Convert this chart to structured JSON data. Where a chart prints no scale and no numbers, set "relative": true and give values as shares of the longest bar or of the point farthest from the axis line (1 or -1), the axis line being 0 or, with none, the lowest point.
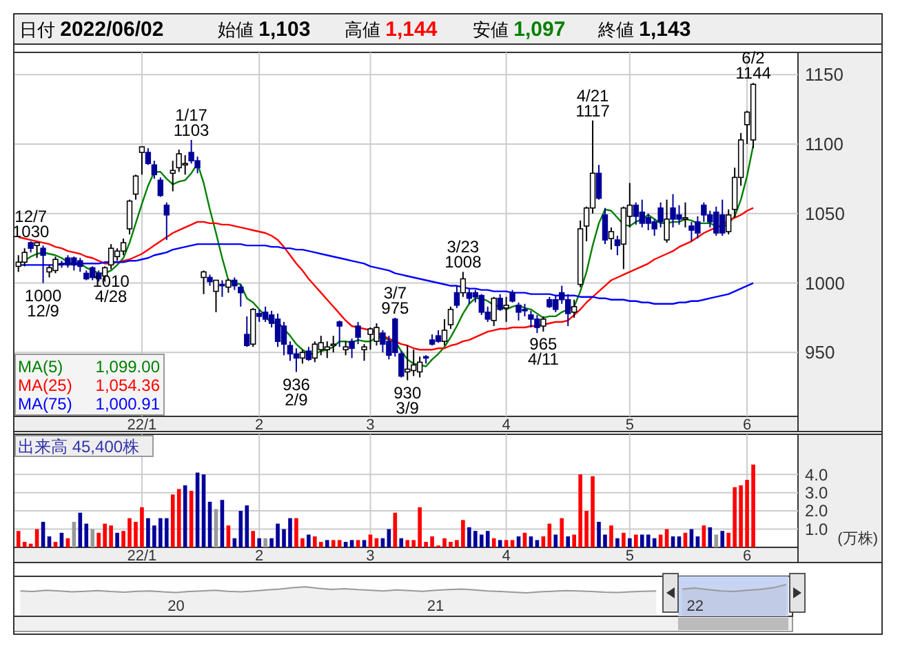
{
  "chart_data": [
    {
      "type": "candlestick",
      "grid": true,
      "ylim": [
        904,
        1166
      ],
      "yticks": [
        950,
        1000,
        1050,
        1100,
        1150
      ],
      "categories": [
        null,
        null,
        null,
        null,
        null,
        null,
        null,
        null,
        null,
        null,
        null,
        null,
        null,
        null,
        null,
        null,
        null,
        null,
        null,
        null,
        "22/1",
        null,
        null,
        null,
        null,
        null,
        null,
        null,
        null,
        null,
        null,
        null,
        null,
        null,
        null,
        null,
        null,
        null,
        null,
        "2",
        null,
        null,
        null,
        null,
        null,
        null,
        null,
        null,
        null,
        null,
        null,
        null,
        null,
        null,
        null,
        null,
        null,
        "3",
        null,
        null,
        null,
        null,
        null,
        null,
        null,
        null,
        null,
        null,
        null,
        null,
        null,
        null,
        null,
        null,
        null,
        null,
        null,
        null,
        null,
        "4",
        null,
        null,
        null,
        null,
        null,
        null,
        null,
        null,
        null,
        null,
        null,
        null,
        null,
        null,
        null,
        null,
        null,
        null,
        null,
        "5",
        null,
        null,
        null,
        null,
        null,
        null,
        null,
        null,
        null,
        null,
        null,
        null,
        null,
        null,
        null,
        null,
        null,
        null,
        "6",
        null
      ],
      "ohlc": [
        [
          1012,
          1020,
          1008,
          1015
        ],
        [
          1015,
          1025,
          1012,
          1022
        ],
        [
          1029,
          1030,
          1022,
          1025
        ],
        [
          1027,
          1029,
          1018,
          1029
        ],
        [
          1025,
          1027,
          1000,
          1020
        ],
        [
          1008,
          1013,
          1004,
          1011
        ],
        [
          1009,
          1019,
          1007,
          1017
        ],
        [
          1014,
          1016,
          1011,
          1013
        ],
        [
          1018,
          1020,
          1011,
          1013
        ],
        [
          1018,
          1019,
          1009,
          1013
        ],
        [
          1016,
          1018,
          1008,
          1012
        ],
        [
          1007,
          1009,
          1002,
          1003
        ],
        [
          1011,
          1012,
          1002,
          1004
        ],
        [
          1007,
          1009,
          1001,
          1003
        ],
        [
          1005,
          1012,
          1001,
          1011
        ],
        [
          1013,
          1028,
          1010,
          1025
        ],
        [
          1019,
          1025,
          1016,
          1023
        ],
        [
          1023,
          1032,
          1020,
          1029
        ],
        [
          1039,
          1060,
          1035,
          1059
        ],
        [
          1064,
          1078,
          1060,
          1077
        ],
        [
          1094,
          1098,
          1078,
          1098
        ],
        [
          1094,
          1097,
          1085,
          1086
        ],
        [
          1085,
          1088,
          1075,
          1078
        ],
        [
          1074,
          1076,
          1062,
          1063
        ],
        [
          1056,
          1058,
          1031,
          1049
        ],
        [
          1079,
          1088,
          1066,
          1081
        ],
        [
          1083,
          1096,
          1080,
          1093
        ],
        [
          1085,
          1092,
          1078,
          1086
        ],
        [
          1094,
          1103,
          1086,
          1088
        ],
        [
          1088,
          1091,
          1079,
          1083
        ],
        [
          1004,
          1009,
          992,
          1008
        ],
        [
          1004,
          1006,
          998,
          1001
        ],
        [
          994,
          1002,
          979,
          1002
        ],
        [
          999,
          1002,
          990,
          998
        ],
        [
          997,
          1003,
          993,
          1002
        ],
        [
          1002,
          1004,
          995,
          998
        ],
        [
          997,
          999,
          983,
          993
        ],
        [
          963,
          976,
          954,
          955
        ],
        [
          956,
          982,
          954,
          981
        ],
        [
          978,
          981,
          972,
          976
        ],
        [
          979,
          983,
          972,
          974
        ],
        [
          977,
          980,
          968,
          971
        ],
        [
          974,
          978,
          954,
          958
        ],
        [
          969,
          972,
          948,
          956
        ],
        [
          955,
          958,
          944,
          949
        ],
        [
          949,
          953,
          936,
          946
        ],
        [
          946,
          952,
          942,
          950
        ],
        [
          951,
          954,
          944,
          945
        ],
        [
          946,
          958,
          943,
          956
        ],
        [
          952,
          962,
          948,
          957
        ],
        [
          952,
          958,
          946,
          954
        ],
        [
          955,
          962,
          950,
          956
        ],
        [
          972,
          973,
          954,
          969
        ],
        [
          952,
          958,
          948,
          954
        ],
        [
          958,
          960,
          946,
          953
        ],
        [
          969,
          972,
          956,
          961
        ],
        [
          952,
          956,
          944,
          954
        ],
        [
          963,
          968,
          952,
          967
        ],
        [
          958,
          971,
          955,
          968
        ],
        [
          964,
          966,
          950,
          956
        ],
        [
          958,
          962,
          945,
          948
        ],
        [
          974,
          975,
          947,
          950
        ],
        [
          949,
          951,
          932,
          933
        ],
        [
          936,
          955,
          930,
          938
        ],
        [
          937,
          952,
          933,
          941
        ],
        [
          936,
          947,
          932,
          943
        ],
        [
          947,
          948,
          942,
          946
        ],
        [
          959,
          963,
          955,
          956
        ],
        [
          962,
          966,
          957,
          958
        ],
        [
          958,
          974,
          955,
          966
        ],
        [
          970,
          983,
          967,
          981
        ],
        [
          993,
          998,
          982,
          984
        ],
        [
          993,
          1008,
          990,
          1003
        ],
        [
          993,
          996,
          985,
          989
        ],
        [
          993,
          995,
          986,
          990
        ],
        [
          991,
          992,
          977,
          979
        ],
        [
          979,
          983,
          972,
          974
        ],
        [
          973,
          990,
          969,
          989
        ],
        [
          989,
          992,
          980,
          981
        ],
        [
          982,
          990,
          972,
          984
        ],
        [
          993,
          995,
          986,
          987
        ],
        [
          984,
          986,
          973,
          979
        ],
        [
          981,
          985,
          976,
          980
        ],
        [
          977,
          980,
          968,
          974
        ],
        [
          974,
          977,
          964,
          968
        ],
        [
          969,
          976,
          965,
          974
        ],
        [
          988,
          990,
          982,
          983
        ],
        [
          988,
          991,
          979,
          981
        ],
        [
          993,
          998,
          985,
          988
        ],
        [
          988,
          992,
          969,
          978
        ],
        [
          979,
          988,
          975,
          983
        ],
        [
          999,
          1045,
          997,
          1039
        ],
        [
          1041,
          1055,
          1030,
          1054
        ],
        [
          1054,
          1117,
          1050,
          1079
        ],
        [
          1079,
          1085,
          1060,
          1061
        ],
        [
          1049,
          1054,
          1028,
          1031
        ],
        [
          1032,
          1040,
          1024,
          1037
        ],
        [
          1031,
          1034,
          1020,
          1027
        ],
        [
          1028,
          1055,
          1010,
          1054
        ],
        [
          1048,
          1072,
          1040,
          1056
        ],
        [
          1056,
          1058,
          1042,
          1048
        ],
        [
          1051,
          1060,
          1040,
          1043
        ],
        [
          1047,
          1050,
          1038,
          1043
        ],
        [
          1044,
          1046,
          1034,
          1039
        ],
        [
          1054,
          1058,
          1040,
          1044
        ],
        [
          1031,
          1060,
          1029,
          1046
        ],
        [
          1054,
          1064,
          1040,
          1046
        ],
        [
          1049,
          1056,
          1042,
          1046
        ],
        [
          1046,
          1058,
          1040,
          1047
        ],
        [
          1041,
          1044,
          1030,
          1038
        ],
        [
          1044,
          1048,
          1032,
          1036
        ],
        [
          1056,
          1058,
          1044,
          1049
        ],
        [
          1049,
          1052,
          1040,
          1044
        ],
        [
          1051,
          1055,
          1034,
          1036
        ],
        [
          1049,
          1060,
          1034,
          1036
        ],
        [
          1037,
          1053,
          1035,
          1049
        ],
        [
          1053,
          1083,
          1047,
          1076
        ],
        [
          1076,
          1108,
          1070,
          1103
        ],
        [
          1114,
          1124,
          1100,
          1123
        ],
        [
          1103,
          1144,
          1097,
          1143
        ]
      ],
      "series": [
        {
          "name": "MA(5) 1,099.00",
          "type": "line",
          "color": "#008000",
          "values": [
            1014,
            1016,
            1019,
            1021,
            1022,
            1021,
            1020,
            1018,
            1015,
            1013,
            1014,
            1011,
            1009,
            1007,
            1007,
            1009,
            1013,
            1018,
            1029,
            1043,
            1057,
            1070,
            1080,
            1080,
            1075,
            1071,
            1073,
            1074,
            1079,
            1086,
            1072,
            1053,
            1036,
            1018,
            1002,
            1000,
            999,
            989,
            986,
            981,
            976,
            971,
            972,
            967,
            962,
            956,
            952,
            949,
            949,
            951,
            952,
            954,
            958,
            958,
            957,
            959,
            958,
            958,
            961,
            961,
            959,
            958,
            951,
            945,
            942,
            941,
            940,
            945,
            949,
            954,
            961,
            969,
            978,
            985,
            989,
            989,
            987,
            984,
            983,
            981,
            983,
            984,
            982,
            981,
            978,
            975,
            976,
            976,
            979,
            981,
            983,
            994,
            1008,
            1027,
            1043,
            1053,
            1052,
            1047,
            1042,
            1041,
            1044,
            1046,
            1049,
            1046,
            1043,
            1043,
            1044,
            1044,
            1046,
            1045,
            1043,
            1043,
            1043,
            1041,
            1040,
            1043,
            1048,
            1060,
            1077,
            1099
          ]
        },
        {
          "name": "MA(25) 1,054.36",
          "type": "line",
          "color": "#ff0000",
          "values": [
            1033,
            1032,
            1031,
            1030,
            1029,
            1028,
            1026,
            1025,
            1023,
            1022,
            1021,
            1019,
            1018,
            1016,
            1014,
            1014,
            1015,
            1016,
            1017,
            1019,
            1021,
            1024,
            1027,
            1030,
            1033,
            1036,
            1038,
            1040,
            1042,
            1044,
            1044,
            1043,
            1043,
            1042,
            1042,
            1041,
            1040,
            1039,
            1038,
            1037,
            1036,
            1034,
            1031,
            1026,
            1020,
            1014,
            1009,
            1003,
            998,
            993,
            988,
            983,
            978,
            973,
            969,
            968,
            967,
            966,
            964,
            962,
            960,
            958,
            956,
            955,
            953,
            952,
            952,
            952,
            953,
            953,
            955,
            956,
            958,
            959,
            961,
            963,
            965,
            966,
            967,
            967,
            968,
            968,
            968,
            969,
            969,
            970,
            971,
            972,
            972,
            973,
            977,
            981,
            986,
            990,
            994,
            998,
            1002,
            1004,
            1006,
            1008,
            1010,
            1012,
            1014,
            1017,
            1019,
            1021,
            1023,
            1026,
            1028,
            1030,
            1033,
            1036,
            1038,
            1040,
            1042,
            1045,
            1047,
            1049,
            1052,
            1054
          ]
        },
        {
          "name": "MA(75) 1,000.91",
          "type": "line",
          "color": "#0000ff",
          "values": [
            1013,
            1013,
            1013,
            1013,
            1013,
            1013,
            1013,
            1014,
            1014,
            1014,
            1014,
            1014,
            1014,
            1014,
            1015,
            1015,
            1015,
            1015,
            1016,
            1016,
            1017,
            1018,
            1020,
            1021,
            1022,
            1024,
            1025,
            1026,
            1027,
            1028,
            1028,
            1028,
            1028,
            1028,
            1028,
            1028,
            1028,
            1027,
            1027,
            1027,
            1027,
            1026,
            1026,
            1025,
            1025,
            1024,
            1024,
            1023,
            1022,
            1021,
            1020,
            1019,
            1018,
            1017,
            1016,
            1015,
            1014,
            1012,
            1011,
            1010,
            1009,
            1007,
            1006,
            1005,
            1004,
            1003,
            1002,
            1001,
            1000,
            999,
            998,
            998,
            997,
            996,
            996,
            995,
            995,
            994,
            994,
            994,
            993,
            993,
            993,
            992,
            992,
            992,
            992,
            991,
            991,
            991,
            991,
            990,
            990,
            990,
            989,
            989,
            988,
            988,
            988,
            987,
            987,
            986,
            986,
            985,
            985,
            985,
            985,
            986,
            986,
            987,
            987,
            988,
            989,
            990,
            991,
            992,
            994,
            996,
            998,
            1000
          ]
        }
      ],
      "annotations": [
        "日付 2022/06/02",
        "始値 1,103",
        "高値 1,144",
        "安値 1,097",
        "終値 1,143",
        {
          "text": "12/7 1030",
          "y": 1030
        },
        {
          "text": "1000 12/9",
          "y": 1000
        },
        {
          "text": "1/17 1103",
          "y": 1103
        },
        {
          "text": "936 2/9",
          "y": 936
        },
        {
          "text": "3/7 975",
          "y": 975
        },
        {
          "text": "930 3/9",
          "y": 930
        },
        {
          "text": "3/23 1008",
          "y": 1008
        },
        {
          "text": "965 4/11",
          "y": 965
        },
        {
          "text": "4/21 1117",
          "y": 1117
        },
        {
          "text": "1010 4/28",
          "y": 1010
        },
        {
          "text": "6/2 1144",
          "y": 1144
        }
      ]
    },
    {
      "type": "bar",
      "title": "出来高 45,400株",
      "ylabel": "(万株)",
      "grid": true,
      "ylim": [
        0,
        6.2
      ],
      "yticks": [
        {
          "value": 1,
          "label": "1.0"
        },
        {
          "value": 2,
          "label": "2.0"
        },
        {
          "value": 3,
          "label": "3.0"
        },
        {
          "value": 4,
          "label": "4.0"
        }
      ],
      "categories": [
        null,
        null,
        null,
        null,
        null,
        null,
        null,
        null,
        null,
        null,
        null,
        null,
        null,
        null,
        null,
        null,
        null,
        null,
        null,
        null,
        "22/1",
        null,
        null,
        null,
        null,
        null,
        null,
        null,
        null,
        null,
        null,
        null,
        null,
        null,
        null,
        null,
        null,
        null,
        null,
        "2",
        null,
        null,
        null,
        null,
        null,
        null,
        null,
        null,
        null,
        null,
        null,
        null,
        null,
        null,
        null,
        null,
        null,
        "3",
        null,
        null,
        null,
        null,
        null,
        null,
        null,
        null,
        null,
        null,
        null,
        null,
        null,
        null,
        null,
        null,
        null,
        null,
        null,
        null,
        null,
        "4",
        null,
        null,
        null,
        null,
        null,
        null,
        null,
        null,
        null,
        null,
        null,
        null,
        null,
        null,
        null,
        null,
        null,
        null,
        null,
        "5",
        null,
        null,
        null,
        null,
        null,
        null,
        null,
        null,
        null,
        null,
        null,
        null,
        null,
        null,
        null,
        null,
        null,
        null,
        "6",
        null
      ],
      "values": [
        0.9,
        0.3,
        0.2,
        1.0,
        1.4,
        0.6,
        0.3,
        0.8,
        0.5,
        1.4,
        1.9,
        1.3,
        1.0,
        0.8,
        1.3,
        1.2,
        0.8,
        0.9,
        1.6,
        1.4,
        2.2,
        1.6,
        1.2,
        1.6,
        1.6,
        2.9,
        3.2,
        3.4,
        3.1,
        4.1,
        4.0,
        2.5,
        2.1,
        2.6,
        1.2,
        0.5,
        2.0,
        2.3,
        0.9,
        0.5,
        0.5,
        0.5,
        1.3,
        1.0,
        1.6,
        1.6,
        0.5,
        0.7,
        0.6,
        0.3,
        0.4,
        0.4,
        0.4,
        0.3,
        0.4,
        0.4,
        0.4,
        0.7,
        0.5,
        0.5,
        1.0,
        1.9,
        0.5,
        0.4,
        0.4,
        2.2,
        0.3,
        0.6,
        0.1,
        0.5,
        0.3,
        0.4,
        1.5,
        1.1,
        0.9,
        0.7,
        0.9,
        0.5,
        0.4,
        0.4,
        0.4,
        0.6,
        0.8,
        0.6,
        0.4,
        0.6,
        1.3,
        0.7,
        1.6,
        0.6,
        0.7,
        4.0,
        2.0,
        3.9,
        1.4,
        0.7,
        1.2,
        0.5,
        0.8,
        0.5,
        0.7,
        0.7,
        0.7,
        0.5,
        0.7,
        1.0,
        0.6,
        0.6,
        0.8,
        1.0,
        0.6,
        1.2,
        1.1,
        0.7,
        0.9,
        0.8,
        3.3,
        3.4,
        3.7,
        4.54
      ],
      "colors": [
        "#ff0000",
        "#ff0000",
        "#ff0000",
        "#ff0000",
        "#000099",
        "#000099",
        "#ff0000",
        "#000099",
        "#ff0000",
        "#999999",
        "#000099",
        "#000099",
        "#999999",
        "#ff0000",
        "#ff0000",
        "#ff0000",
        "#000099",
        "#ff0000",
        "#ff0000",
        "#ff0000",
        "#ff0000",
        "#000099",
        "#000099",
        "#000099",
        "#000099",
        "#ff0000",
        "#ff0000",
        "#000099",
        "#ff0000",
        "#000099",
        "#000099",
        "#000099",
        "#999999",
        "#000099",
        "#ff0000",
        "#000099",
        "#000099",
        "#000099",
        "#ff0000",
        "#000099",
        "#999999",
        "#000099",
        "#000099",
        "#000099",
        "#000099",
        "#ff0000",
        "#ff0000",
        "#000099",
        "#ff0000",
        "#ff0000",
        "#000099",
        "#ff0000",
        "#ff0000",
        "#000099",
        "#000099",
        "#ff0000",
        "#000099",
        "#ff0000",
        "#ff0000",
        "#000099",
        "#000099",
        "#ff0000",
        "#000099",
        "#ff0000",
        "#ff0000",
        "#ff0000",
        "#ff0000",
        "#ff0000",
        "#ff0000",
        "#ff0000",
        "#ff0000",
        "#ff0000",
        "#ff0000",
        "#000099",
        "#000099",
        "#000099",
        "#000099",
        "#ff0000",
        "#000099",
        "#ff0000",
        "#ff0000",
        "#000099",
        "#ff0000",
        "#000099",
        "#000099",
        "#ff0000",
        "#ff0000",
        "#000099",
        "#ff0000",
        "#000099",
        "#ff0000",
        "#ff0000",
        "#ff0000",
        "#ff0000",
        "#000099",
        "#000099",
        "#ff0000",
        "#000099",
        "#ff0000",
        "#000099",
        "#ff0000",
        "#000099",
        "#000099",
        "#000099",
        "#ff0000",
        "#ff0000",
        "#000099",
        "#000099",
        "#ff0000",
        "#000099",
        "#000099",
        "#ff0000",
        "#000099",
        "#999999",
        "#000099",
        "#ff0000",
        "#ff0000",
        "#ff0000",
        "#ff0000",
        "#ff0000"
      ]
    },
    {
      "type": "area",
      "relative": true,
      "color": "#999999",
      "categories": [
        null,
        null,
        null,
        null,
        null,
        null,
        null,
        null,
        null,
        null,
        null,
        null,
        "20",
        null,
        null,
        null,
        null,
        null,
        null,
        null,
        null,
        null,
        null,
        null,
        null,
        null,
        null,
        null,
        null,
        null,
        null,
        null,
        "21",
        null,
        null,
        null,
        null,
        null,
        null,
        null,
        null,
        null,
        null,
        null,
        null,
        null,
        null,
        null,
        null,
        null,
        null,
        null,
        "22",
        null,
        null,
        null,
        null,
        null,
        null,
        null
      ],
      "values": [
        0.8,
        0.78,
        0.82,
        0.8,
        0.77,
        0.79,
        0.81,
        0.78,
        0.76,
        0.79,
        0.8,
        0.77,
        0.75,
        0.78,
        0.8,
        0.82,
        0.79,
        0.77,
        0.8,
        0.83,
        0.86,
        0.9,
        0.93,
        0.88,
        0.85,
        0.87,
        0.84,
        0.82,
        0.8,
        0.83,
        0.81,
        0.79,
        0.82,
        0.84,
        0.86,
        0.83,
        0.8,
        0.78,
        0.76,
        0.74,
        0.77,
        0.79,
        0.81,
        0.8,
        0.78,
        0.76,
        0.75,
        0.77,
        0.79,
        0.8,
        null,
        0.86,
        0.89,
        0.84,
        0.8,
        0.78,
        0.82,
        0.85,
        0.9,
        1.0
      ]
    }
  ]
}
